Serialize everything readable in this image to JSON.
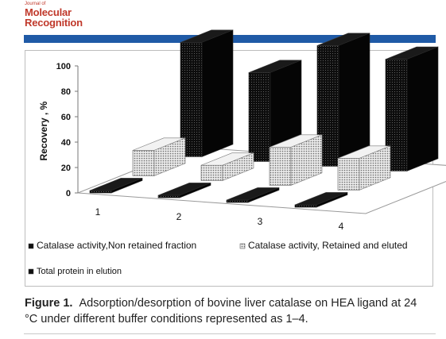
{
  "journal": {
    "small": "Journal of",
    "line1": "Molecular",
    "line2": "Recognition"
  },
  "chart_data": {
    "type": "bar",
    "ylabel": "Recovery , %",
    "ylim": [
      0,
      100
    ],
    "yticks": [
      0,
      20,
      40,
      60,
      80,
      100
    ],
    "categories": [
      "1",
      "2",
      "3",
      "4"
    ],
    "series": [
      {
        "name": "Catalase activity,Non retained fraction",
        "values": [
          0,
          0,
          0,
          0
        ],
        "color": "#111111"
      },
      {
        "name": "Catalase activity, Retained and eluted",
        "values": [
          20,
          12,
          30,
          25
        ],
        "color": "#bdbdbd"
      },
      {
        "name": "Total protein in elution",
        "values": [
          90,
          70,
          95,
          88
        ],
        "color": "#111111"
      }
    ]
  },
  "caption": {
    "label": "Figure 1.",
    "text": "Adsorption/desorption of bovine liver catalase on HEA ligand at 24 °C under different buffer conditions represented as 1–4."
  }
}
